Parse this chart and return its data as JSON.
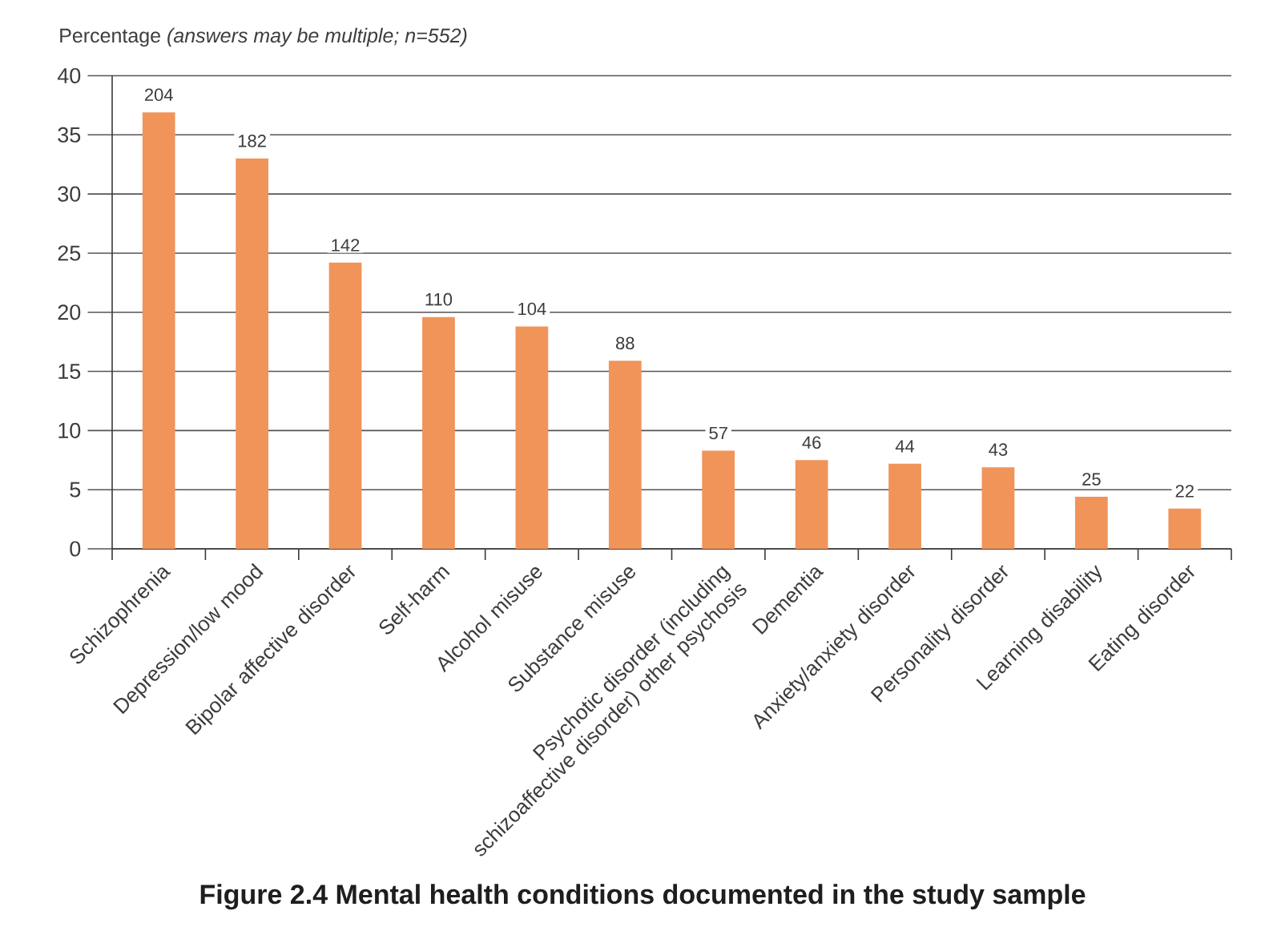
{
  "chart_data": {
    "type": "bar",
    "title": "Figure 2.4 Mental health conditions documented in the study sample",
    "ylabel": "Percentage *(answers may be multiple; n=552)*",
    "categories": [
      "Schizophrenia",
      "Depression/low mood",
      "Bipolar affective disorder",
      "Self-harm",
      "Alcohol misuse",
      "Substance misuse",
      "Psychotic disorder (including schizoaffective disorder) other psychosis",
      "Dementia",
      "Anxiety/anxiety disorder",
      "Personality disorder",
      "Learning disability",
      "Eating disorder"
    ],
    "values": [
      36.9,
      33.0,
      24.2,
      19.6,
      18.8,
      15.9,
      8.3,
      7.5,
      7.2,
      6.9,
      4.4,
      3.4
    ],
    "annotations": [
      {
        "text": "204",
        "x": "Schizophrenia",
        "y": 36.9
      },
      {
        "text": "182",
        "x": "Depression/low mood",
        "y": 33.0
      },
      {
        "text": "142",
        "x": "Bipolar affective disorder",
        "y": 24.2
      },
      {
        "text": "110",
        "x": "Self-harm",
        "y": 19.6
      },
      {
        "text": "104",
        "x": "Alcohol misuse",
        "y": 18.8
      },
      {
        "text": "88",
        "x": "Substance misuse",
        "y": 15.9
      },
      {
        "text": "57",
        "x": "Psychotic disorder (including schizoaffective disorder) other psychosis",
        "y": 8.3
      },
      {
        "text": "46",
        "x": "Dementia",
        "y": 7.5
      },
      {
        "text": "44",
        "x": "Anxiety/anxiety disorder",
        "y": 7.2
      },
      {
        "text": "43",
        "x": "Personality disorder",
        "y": 6.9
      },
      {
        "text": "25",
        "x": "Learning disability",
        "y": 4.4
      },
      {
        "text": "22",
        "x": "Eating disorder",
        "y": 3.4
      }
    ],
    "color": "#f0945a",
    "ylim": [
      0,
      40
    ],
    "yticks": [
      0,
      5,
      10,
      15,
      20,
      25,
      30,
      35,
      40
    ],
    "grid": "y"
  }
}
